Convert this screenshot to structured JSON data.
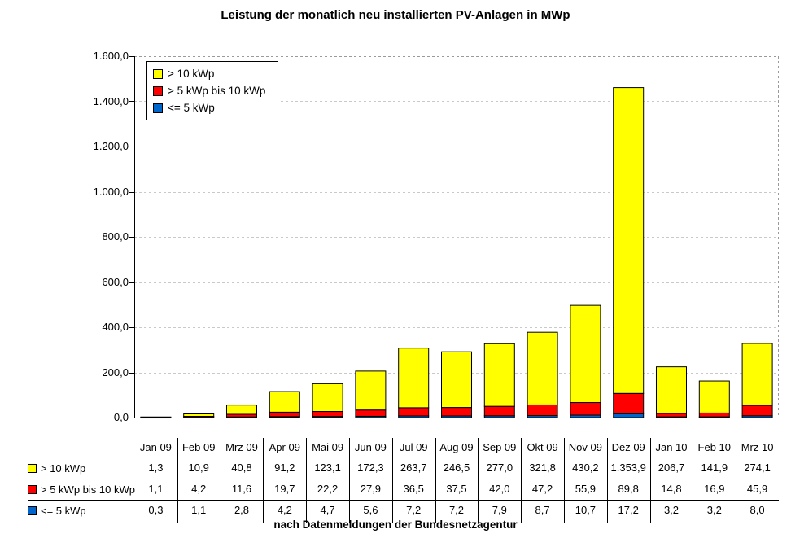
{
  "title": "Leistung der monatlich neu installierten PV-Anlagen in MWp",
  "footer": "nach Datenmeldungen der Bundesnetzagentur",
  "colors": {
    "series_yellow": "#FFFF00",
    "series_red": "#FF0000",
    "series_blue": "#0066CC",
    "gridline": "#C9C9C9",
    "plot_border_dashed": "#9A9A9A",
    "axis": "#000000",
    "background": "#FFFFFF"
  },
  "chart_data": {
    "type": "bar",
    "stacked": true,
    "title": "Leistung der monatlich neu installierten PV-Anlagen in MWp",
    "xlabel": "",
    "ylabel": "",
    "ylim": [
      0,
      1600
    ],
    "ytick_step": 200,
    "ytick_labels": [
      "0,0",
      "200,0",
      "400,0",
      "600,0",
      "800,0",
      "1.000,0",
      "1.200,0",
      "1.400,0",
      "1.600,0"
    ],
    "grid": true,
    "legend_position": "top-left-inside",
    "categories": [
      "Jan 09",
      "Feb 09",
      "Mrz 09",
      "Apr 09",
      "Mai 09",
      "Jun 09",
      "Jul 09",
      "Aug 09",
      "Sep 09",
      "Okt 09",
      "Nov 09",
      "Dez 09",
      "Jan 10",
      "Feb 10",
      "Mrz 10"
    ],
    "series": [
      {
        "name": "> 10 kWp",
        "color": "#FFFF00",
        "values": [
          1.3,
          10.9,
          40.8,
          91.2,
          123.1,
          172.3,
          263.7,
          246.5,
          277.0,
          321.8,
          430.2,
          1353.9,
          206.7,
          141.9,
          274.1
        ],
        "display": [
          "1,3",
          "10,9",
          "40,8",
          "91,2",
          "123,1",
          "172,3",
          "263,7",
          "246,5",
          "277,0",
          "321,8",
          "430,2",
          "1.353,9",
          "206,7",
          "141,9",
          "274,1"
        ]
      },
      {
        "name": "> 5 kWp bis 10 kWp",
        "color": "#FF0000",
        "values": [
          1.1,
          4.2,
          11.6,
          19.7,
          22.2,
          27.9,
          36.5,
          37.5,
          42.0,
          47.2,
          55.9,
          89.8,
          14.8,
          16.9,
          45.9
        ],
        "display": [
          "1,1",
          "4,2",
          "11,6",
          "19,7",
          "22,2",
          "27,9",
          "36,5",
          "37,5",
          "42,0",
          "47,2",
          "55,9",
          "89,8",
          "14,8",
          "16,9",
          "45,9"
        ]
      },
      {
        "name": "<= 5 kWp",
        "color": "#0066CC",
        "values": [
          0.3,
          1.1,
          2.8,
          4.2,
          4.7,
          5.6,
          7.2,
          7.2,
          7.9,
          8.7,
          10.7,
          17.2,
          3.2,
          3.2,
          8.0
        ],
        "display": [
          "0,3",
          "1,1",
          "2,8",
          "4,2",
          "4,7",
          "5,6",
          "7,2",
          "7,2",
          "7,9",
          "8,7",
          "10,7",
          "17,2",
          "3,2",
          "3,2",
          "8,0"
        ]
      }
    ]
  }
}
